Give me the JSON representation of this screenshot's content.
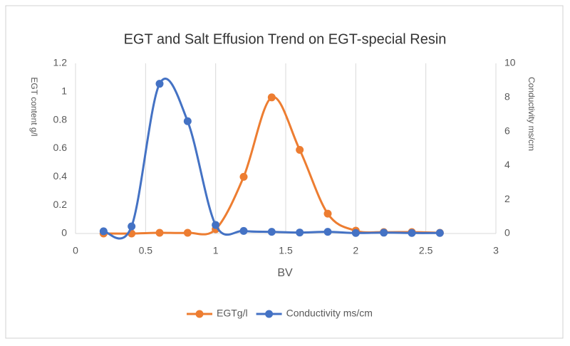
{
  "chart_data": {
    "type": "line",
    "title": "EGT and Salt Effusion Trend on EGT-special Resin",
    "x_label": "BV",
    "y_label": "EGT content g/l",
    "y2_label": "Conductivity ms/cm",
    "x": [
      0.2,
      0.4,
      0.6,
      0.8,
      1.0,
      1.2,
      1.4,
      1.6,
      1.8,
      2.0,
      2.2,
      2.4,
      2.6
    ],
    "series": [
      {
        "name": "EGTg/l",
        "color": "#ED7D31",
        "values": [
          0,
          0,
          0.005,
          0.005,
          0.03,
          0.4,
          0.96,
          0.59,
          0.14,
          0.02,
          0.01,
          0.01,
          0.005
        ]
      },
      {
        "name": "Conductivity ms/cm",
        "color": "#4472C4",
        "axis": "y2",
        "values": [
          0.13,
          0.42,
          8.8,
          6.6,
          0.5,
          0.15,
          0.1,
          0.06,
          0.1,
          0.03,
          0.05,
          0.03,
          0.03
        ]
      }
    ],
    "xlim": [
      0,
      3
    ],
    "xticks": [
      0,
      0.5,
      1,
      1.5,
      2,
      2.5,
      3
    ],
    "ylim": [
      0,
      1.2
    ],
    "yticks": [
      0,
      0.2,
      0.4,
      0.6,
      0.8,
      1,
      1.2
    ],
    "y2lim": [
      0,
      10
    ],
    "y2ticks": [
      0,
      2,
      4,
      6,
      8,
      10
    ],
    "grid": "x",
    "smooth": true,
    "legend": "bottom"
  }
}
